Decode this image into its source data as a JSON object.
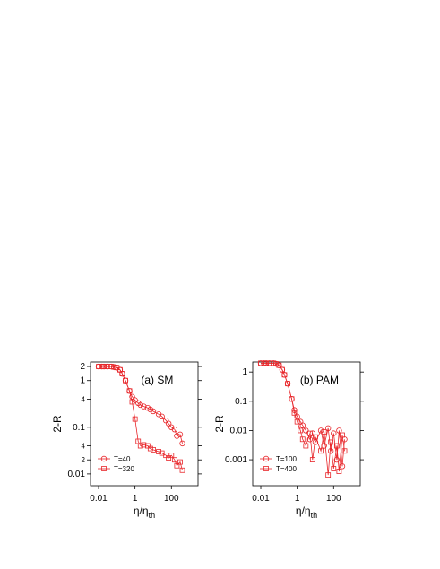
{
  "chart_data": [
    {
      "type": "line",
      "annotation": "(a) SM",
      "y_label": "2-R",
      "x_label": {
        "main": "η/η",
        "sub": "th"
      },
      "log_x": true,
      "log_y": true,
      "legend": "bottom-left",
      "xlim": [
        0.0036,
        2900
      ],
      "xticks": [
        0.01,
        1,
        100
      ],
      "ylim": [
        0.0056,
        2.5
      ],
      "yticks": [
        2,
        1,
        {
          "value": 0.4,
          "label": "4"
        },
        0.1,
        {
          "value": 0.04,
          "label": "4"
        },
        {
          "value": 0.02,
          "label": "2"
        },
        0.01
      ],
      "x": [
        0.01,
        0.015,
        0.02,
        0.03,
        0.05,
        0.07,
        0.1,
        0.15,
        0.2,
        0.3,
        0.5,
        0.7,
        1,
        1.5,
        2,
        3,
        5,
        7,
        10,
        20,
        30,
        50,
        70,
        100,
        150,
        200,
        300,
        400
      ],
      "series": [
        {
          "name": "T=40",
          "color": "#e8262a",
          "marker": "circle",
          "values": [
            2,
            2,
            2,
            2,
            2,
            1.95,
            1.9,
            1.7,
            1.4,
            1,
            0.6,
            0.45,
            0.38,
            0.33,
            0.3,
            0.28,
            0.26,
            0.24,
            0.22,
            0.19,
            0.17,
            0.14,
            0.12,
            0.1,
            0.09,
            0.065,
            0.07,
            0.045
          ]
        },
        {
          "name": "T=320",
          "color": "#e8262a",
          "marker": "square",
          "values": [
            2,
            2,
            2,
            2,
            2,
            1.95,
            1.9,
            1.7,
            1.4,
            1,
            0.6,
            0.35,
            0.15,
            0.05,
            0.04,
            0.042,
            0.04,
            0.035,
            0.033,
            0.03,
            0.028,
            0.025,
            0.022,
            0.025,
            0.02,
            0.015,
            0.018,
            0.012
          ]
        }
      ]
    },
    {
      "type": "line",
      "annotation": "(b) PAM",
      "y_label": "2-R",
      "x_label": {
        "main": "η/η",
        "sub": "th"
      },
      "log_x": true,
      "log_y": true,
      "legend": "bottom-left",
      "xlim": [
        0.0036,
        2900
      ],
      "xticks": [
        0.01,
        1,
        100
      ],
      "ylim": [
        0.00013,
        2.2
      ],
      "yticks": [
        1,
        0.1,
        0.01,
        0.001
      ],
      "x": [
        0.01,
        0.015,
        0.02,
        0.03,
        0.05,
        0.07,
        0.1,
        0.15,
        0.2,
        0.3,
        0.5,
        0.7,
        1,
        1.5,
        2,
        3,
        5,
        7,
        10,
        20,
        30,
        50,
        70,
        100,
        150,
        200,
        300,
        400
      ],
      "series": [
        {
          "name": "T=100",
          "color": "#e8262a",
          "marker": "circle",
          "values": [
            2,
            2,
            2,
            2,
            2,
            1.9,
            1.7,
            1.2,
            0.8,
            0.4,
            0.12,
            0.05,
            0.03,
            0.02,
            0.015,
            0.01,
            0.005,
            0.008,
            0.004,
            0.01,
            0.003,
            0.012,
            0.002,
            0.008,
            0.001,
            0.01,
            0.0006,
            0.005
          ]
        },
        {
          "name": "T=400",
          "color": "#e8262a",
          "marker": "square",
          "values": [
            2,
            2,
            2,
            2,
            2,
            1.9,
            1.7,
            1.2,
            0.8,
            0.4,
            0.12,
            0.04,
            0.02,
            0.01,
            0.005,
            0.003,
            0.008,
            0.001,
            0.006,
            0.002,
            0.009,
            0.0003,
            0.004,
            0.0005,
            0.003,
            0.0004,
            0.007,
            0.002
          ]
        }
      ]
    }
  ]
}
